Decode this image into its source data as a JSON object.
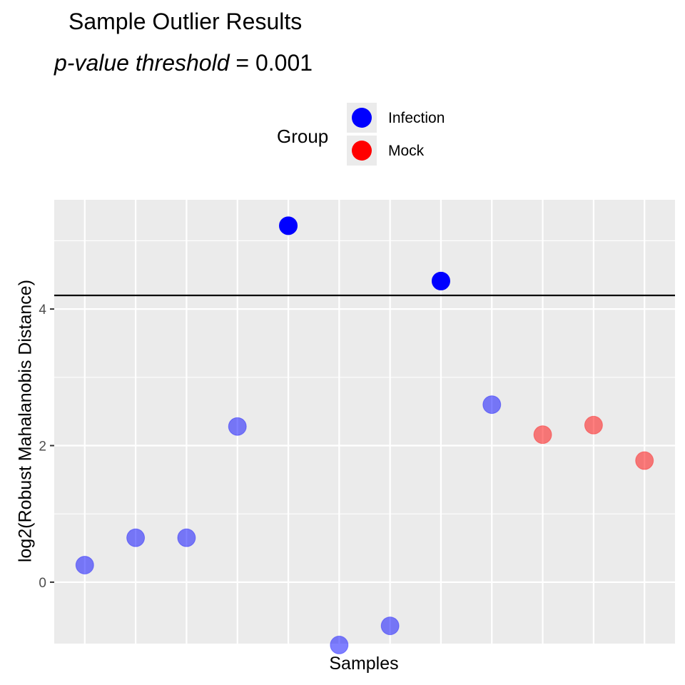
{
  "title": "Sample Outlier Results",
  "subtitle": {
    "italic_part": "p-value threshold",
    "rest": " = 0.001"
  },
  "legend": {
    "title": "Group",
    "items": [
      {
        "label": "Infection",
        "color": "#0000ff"
      },
      {
        "label": "Mock",
        "color": "#ff0000"
      }
    ]
  },
  "chart_data": {
    "type": "scatter",
    "title": "Sample Outlier Results",
    "subtitle": "p-value threshold = 0.001",
    "xlabel": "Samples",
    "ylabel": "log2(Robust Mahalanobis Distance)",
    "xlim": [
      0.4,
      12.6
    ],
    "ylim": [
      -0.9,
      5.6
    ],
    "yticks": [
      0,
      2,
      4
    ],
    "threshold_line": 4.2,
    "grid": true,
    "legend_position": "top",
    "series": [
      {
        "name": "Infection",
        "color": "#0000ff",
        "points": [
          {
            "x": 1,
            "y": 0.25,
            "outlier": false
          },
          {
            "x": 2,
            "y": 0.65,
            "outlier": false
          },
          {
            "x": 3,
            "y": 0.65,
            "outlier": false
          },
          {
            "x": 4,
            "y": 2.28,
            "outlier": false
          },
          {
            "x": 5,
            "y": 5.22,
            "outlier": true
          },
          {
            "x": 6,
            "y": -0.92,
            "outlier": false
          },
          {
            "x": 7,
            "y": -0.64,
            "outlier": false
          },
          {
            "x": 8,
            "y": 4.41,
            "outlier": true
          },
          {
            "x": 9,
            "y": 2.6,
            "outlier": false
          }
        ]
      },
      {
        "name": "Mock",
        "color": "#ff0000",
        "points": [
          {
            "x": 10,
            "y": 2.16,
            "outlier": false
          },
          {
            "x": 11,
            "y": 2.3,
            "outlier": false
          },
          {
            "x": 12,
            "y": 1.78,
            "outlier": false
          }
        ]
      }
    ]
  }
}
